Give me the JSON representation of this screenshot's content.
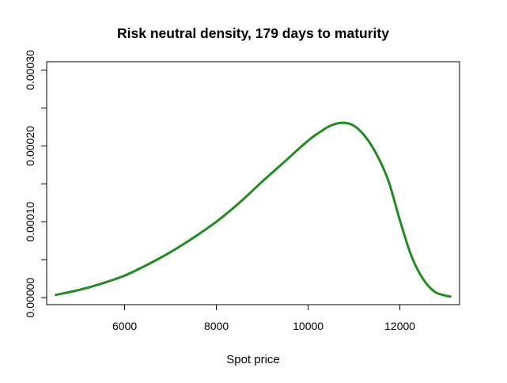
{
  "chart_data": {
    "type": "line",
    "title": "Risk neutral density, 179 days to maturity",
    "xlabel": "Spot price",
    "ylabel": "",
    "xlim": [
      4300,
      13300
    ],
    "ylim": [
      -9.3e-06,
      0.000311
    ],
    "x_ticks": [
      6000,
      8000,
      10000,
      12000
    ],
    "x_tick_labels": [
      "6000",
      "8000",
      "10000",
      "12000"
    ],
    "y_ticks": [
      0.0,
      5e-05,
      0.0001,
      0.00015,
      0.0002,
      0.00025,
      0.0003
    ],
    "y_tick_labels": [
      "0.00000",
      "",
      "0.00010",
      "",
      "0.00020",
      "",
      "0.00030"
    ],
    "grid": false,
    "series": [
      {
        "color": "#228b22",
        "x": [
          4500,
          5000,
          5500,
          6000,
          6500,
          7000,
          7500,
          8000,
          8500,
          9000,
          9500,
          10000,
          10300,
          10500,
          10750,
          11000,
          11250,
          11500,
          11750,
          12000,
          12250,
          12500,
          12750,
          13000,
          13100
        ],
        "y": [
          3.5e-06,
          1e-05,
          1.85e-05,
          2.9e-05,
          4.35e-05,
          6e-05,
          7.9e-05,
          0.0001,
          0.000125,
          0.000153,
          0.00018,
          0.000207,
          0.00022,
          0.000227,
          0.0002305,
          0.0002265,
          0.000212,
          0.000188,
          0.000154,
          0.000102,
          5.5e-05,
          2.5e-05,
          8e-06,
          2.5e-06,
          1.5e-06
        ]
      }
    ]
  }
}
